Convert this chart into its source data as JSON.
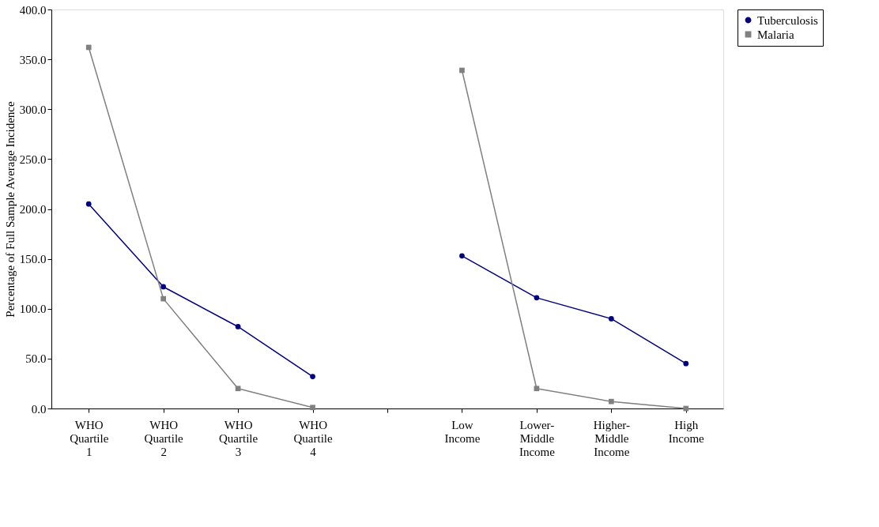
{
  "chart_data": {
    "type": "line",
    "ylabel": "Percentage of Full Sample Average Incidence",
    "categories": [
      "WHO Quartile 1",
      "WHO Quartile 2",
      "WHO Quartile 3",
      "WHO Quartile 4",
      null,
      "Low Income",
      "Lower-Middle Income",
      "Higher-Middle Income",
      "High Income"
    ],
    "series": [
      {
        "name": "Tuberculosis",
        "color": "#000080",
        "marker": "circle",
        "values": [
          205,
          122,
          82,
          32,
          null,
          153,
          111,
          90,
          45
        ]
      },
      {
        "name": "Malaria",
        "color": "#808080",
        "marker": "square",
        "values": [
          362,
          110,
          20,
          1,
          null,
          339,
          20,
          7,
          0
        ]
      }
    ],
    "ylim": [
      0,
      400
    ],
    "yticks": [
      {
        "value": 0,
        "label": "0.0"
      },
      {
        "value": 50,
        "label": "50.0"
      },
      {
        "value": 100,
        "label": "100.0"
      },
      {
        "value": 150,
        "label": "150.0"
      },
      {
        "value": 200,
        "label": "200.0"
      },
      {
        "value": 250,
        "label": "250.0"
      },
      {
        "value": 300,
        "label": "300.0"
      },
      {
        "value": 350,
        "label": "350.0"
      },
      {
        "value": 400,
        "label": "400.0"
      }
    ],
    "grid": false,
    "legend": "right"
  }
}
